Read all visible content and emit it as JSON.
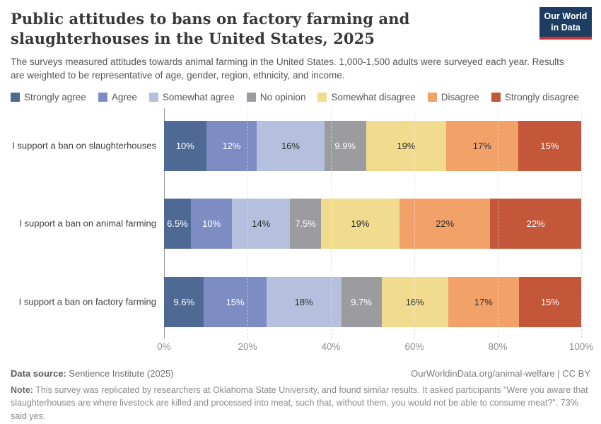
{
  "header": {
    "title": "Public attitudes to bans on factory farming and slaughterhouses in the United States, 2025",
    "subtitle": "The surveys measured attitudes towards animal farming in the United States. 1,000-1,500 adults were surveyed each year. Results are weighted to be representative of age, gender, region, ethnicity, and income.",
    "logo": {
      "line1": "Our World",
      "line2": "in Data",
      "bg_color": "#1d3d63",
      "accent_color": "#d0342c"
    }
  },
  "chart_data": {
    "type": "bar",
    "orientation": "horizontal_stacked",
    "title": "Public attitudes to bans on factory farming and slaughterhouses in the United States, 2025",
    "xlabel": "",
    "ylabel": "",
    "xlim": [
      0,
      100
    ],
    "x_ticks": [
      "0%",
      "20%",
      "40%",
      "60%",
      "80%",
      "100%"
    ],
    "grid": "vertical-dashed",
    "legend_position": "top",
    "categories": [
      "I support a ban on slaughterhouses",
      "I support a ban on animal farming",
      "I support a ban on factory farming"
    ],
    "series": [
      {
        "name": "Strongly agree",
        "color": "#4e6a94",
        "text_color": "#ffffff",
        "values": [
          10,
          6.5,
          9.6
        ],
        "labels": [
          "10%",
          "6.5%",
          "9.6%"
        ]
      },
      {
        "name": "Agree",
        "color": "#7d8dc4",
        "text_color": "#ffffff",
        "values": [
          12,
          10,
          15
        ],
        "labels": [
          "12%",
          "10%",
          "15%"
        ]
      },
      {
        "name": "Somewhat agree",
        "color": "#b4c0de",
        "text_color": "#2d2d2d",
        "values": [
          16,
          14,
          18
        ],
        "labels": [
          "16%",
          "14%",
          "18%"
        ]
      },
      {
        "name": "No opinion",
        "color": "#9b9ba0",
        "text_color": "#ffffff",
        "values": [
          9.9,
          7.5,
          9.7
        ],
        "labels": [
          "9.9%",
          "7.5%",
          "9.7%"
        ]
      },
      {
        "name": "Somewhat disagree",
        "color": "#f0db8e",
        "text_color": "#2d2d2d",
        "values": [
          19,
          19,
          16
        ],
        "labels": [
          "19%",
          "19%",
          "16%"
        ]
      },
      {
        "name": "Disagree",
        "color": "#f2a269",
        "text_color": "#2d2d2d",
        "values": [
          17,
          22,
          17
        ],
        "labels": [
          "17%",
          "22%",
          "17%"
        ]
      },
      {
        "name": "Strongly disagree",
        "color": "#c4563a",
        "text_color": "#ffffff",
        "values": [
          15,
          22,
          15
        ],
        "labels": [
          "15%",
          "22%",
          "15%"
        ]
      }
    ]
  },
  "footer": {
    "data_source_label": "Data source:",
    "data_source_value": " Sentience Institute (2025)",
    "attribution": "OurWorldinData.org/animal-welfare | CC BY",
    "note_label": "Note:",
    "note_text": " This survey was replicated by researchers at Oklahoma State University, and found similar results. It asked participants \"Were you aware that slaughterhouses are where livestock are killed and processed into meat, such that, without them, you would not be able to consume meat?\". 73% said yes."
  }
}
